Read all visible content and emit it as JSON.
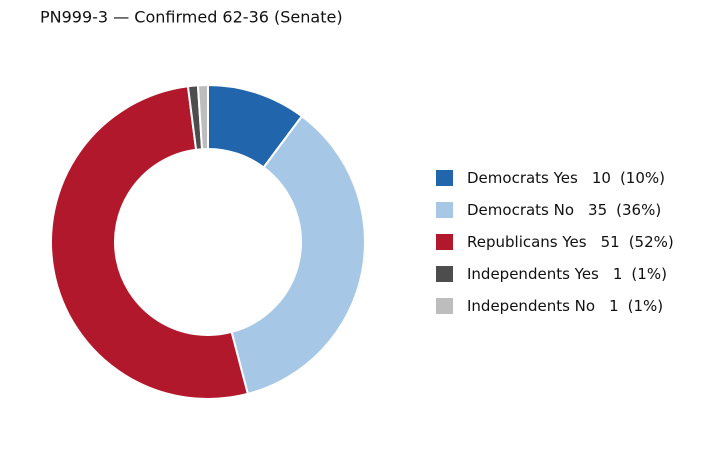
{
  "chart_data": {
    "type": "donut",
    "title": "PN999-3 — Confirmed 62-36 (Senate)",
    "categories": [
      "Democrats Yes",
      "Democrats No",
      "Republicans Yes",
      "Independents Yes",
      "Independents No"
    ],
    "values": [
      10,
      35,
      51,
      1,
      1
    ],
    "percent_labels": [
      "(10%)",
      "(36%)",
      "(52%)",
      "(1%)",
      "(1%)"
    ],
    "colors": [
      "#2166ac",
      "#a6c8e6",
      "#b2182b",
      "#4d4d4d",
      "#bdbdbd"
    ]
  }
}
